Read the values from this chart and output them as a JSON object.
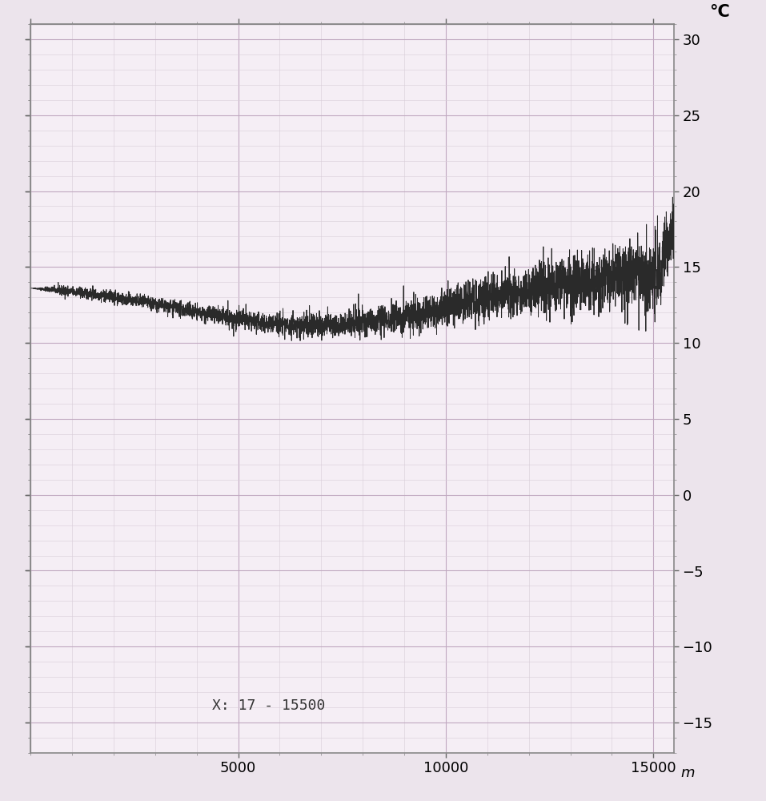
{
  "xlim": [
    0,
    15500
  ],
  "ylim": [
    -17,
    31
  ],
  "yticks": [
    -15,
    -10,
    -5,
    0,
    5,
    10,
    15,
    20,
    25,
    30
  ],
  "xticks": [
    5000,
    10000,
    15000
  ],
  "xlabel": "m",
  "ylabel_unit": "°C",
  "annotation": "X: 17 - 15500",
  "bg_color": "#f5eef5",
  "fig_color": "#ece4ec",
  "grid_major_color": "#c0a8c0",
  "grid_minor_color": "#d8ccd8",
  "line_color": "#2a2a2a",
  "line_width": 0.7,
  "seed": 42,
  "x_start": 17,
  "x_end": 15500,
  "n_points": 5000
}
